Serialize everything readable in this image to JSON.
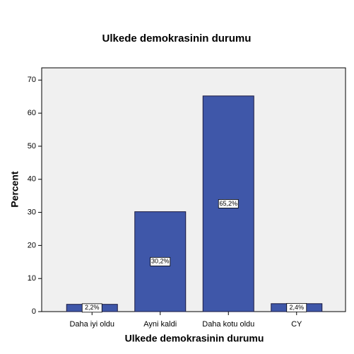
{
  "chart_data": {
    "type": "bar",
    "title": "Ulkede demokrasinin durumu",
    "x_label": "Ulkede demokrasinin durumu",
    "y_label": "Percent",
    "categories": [
      "Daha iyi oldu",
      "Ayni kaldi",
      "Daha kotu oldu",
      "CY"
    ],
    "values": [
      2.2,
      30.2,
      65.2,
      2.4
    ],
    "value_labels": [
      "2,2%",
      "30,2%",
      "65,2%",
      "2,4%"
    ],
    "color": "#3f57a9",
    "ylim": [
      0,
      73.7
    ],
    "yticks": [
      0,
      10,
      20,
      30,
      40,
      50,
      60,
      70
    ]
  }
}
